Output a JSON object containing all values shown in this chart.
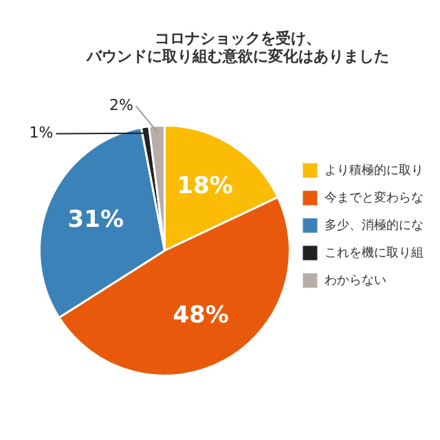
{
  "chart_data": {
    "type": "pie",
    "title": "コロナショックを受け、バウンドに取り組む意欲に変化はありました",
    "categories": [
      "より積極的に取り",
      "今までと変わらな",
      "多少、消極的にな",
      "これを機に取り組",
      "わからない"
    ],
    "values": [
      18,
      48,
      31,
      1,
      2
    ],
    "colors": [
      "#fbbc05",
      "#e8590c",
      "#3b82b9",
      "#222222",
      "#b9ada9"
    ],
    "value_labels": [
      "18%",
      "48%",
      "31%",
      "1%",
      "2%"
    ],
    "legend": "right"
  }
}
